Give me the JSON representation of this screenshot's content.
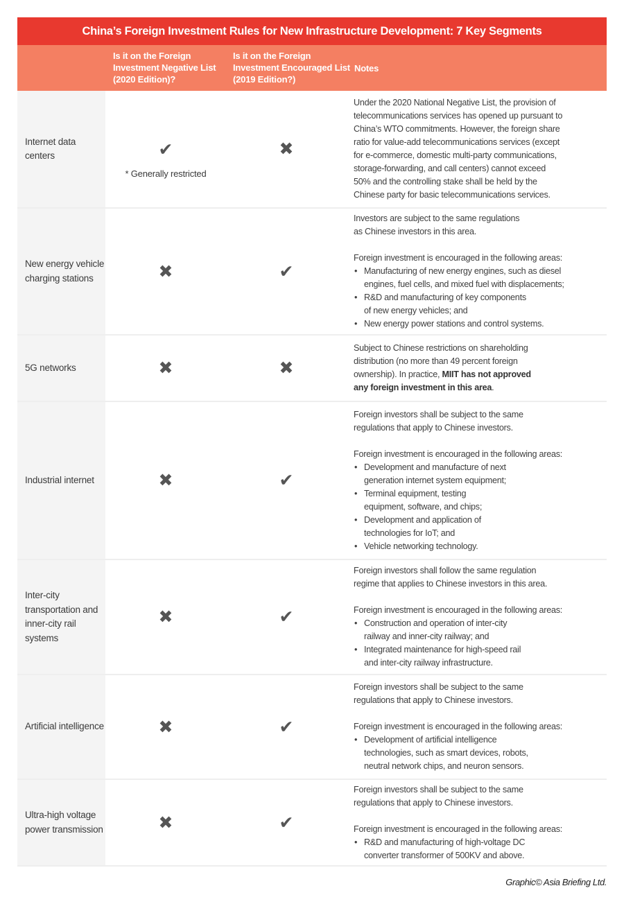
{
  "title": "China’s Foreign Investment Rules for New Infrastructure Development: 7 Key Segments",
  "headers": {
    "negative_list": "Is it on the Foreign Investment Negative List (2020 Edition)?",
    "encouraged_list": "Is it on the Foreign Investment Encouraged List (2019 Edition?)",
    "notes": "Notes"
  },
  "icons": {
    "yes": "checkmark-icon",
    "no": "cross-icon",
    "yes_glyph": "✔",
    "no_glyph": "✖"
  },
  "colors": {
    "title_bar": "#e8392f",
    "header_bar": "#f47f62",
    "mark": "#555555"
  },
  "rows": [
    {
      "segment": "Internet data centers",
      "negative": "yes",
      "negative_note": "* Generally restricted",
      "encouraged": "no",
      "notes": [
        {
          "type": "p",
          "lines": [
            "Under the 2020 National Negative List, the provision of",
            "telecommunications services has opened up pursuant to",
            "China’s WTO commitments. However, the foreign share",
            "ratio for value-add telecommunications services (except",
            "for e-commerce, domestic multi-party communications,",
            "storage-forwarding, and call centers) cannot exceed",
            "50% and the controlling stake shall be held by the",
            "Chinese party for basic telecommunications services."
          ]
        }
      ]
    },
    {
      "segment": "New energy vehicle charging stations",
      "negative": "no",
      "encouraged": "yes",
      "notes": [
        {
          "type": "p",
          "lines": [
            "Investors are subject to the same regulations",
            "as Chinese investors in this area."
          ]
        },
        {
          "type": "gap"
        },
        {
          "type": "p",
          "lines": [
            "Foreign investment is encouraged in the following areas:"
          ]
        },
        {
          "type": "bullet",
          "lines": [
            "Manufacturing of new energy engines, such as diesel",
            "engines, fuel cells, and mixed fuel with displacements;"
          ]
        },
        {
          "type": "bullet",
          "lines": [
            "R&D and manufacturing of key components",
            "of new energy vehicles; and"
          ]
        },
        {
          "type": "bullet",
          "lines": [
            "New energy power stations and control systems."
          ]
        }
      ]
    },
    {
      "segment": "5G networks",
      "negative": "no",
      "encouraged": "no",
      "notes": [
        {
          "type": "p",
          "lines": [
            "Subject to Chinese restrictions on shareholding",
            "distribution (no more than 49 percent foreign",
            [
              {
                "text": "ownership). In practice, ",
                "bold": false
              },
              {
                "text": "MIIT has not approved",
                "bold": true
              }
            ],
            [
              {
                "text": "any foreign investment in this area",
                "bold": true
              },
              {
                "text": ".",
                "bold": false
              }
            ]
          ]
        }
      ]
    },
    {
      "segment": "Industrial internet",
      "negative": "no",
      "encouraged": "yes",
      "notes": [
        {
          "type": "p",
          "lines": [
            "Foreign investors shall be subject to the same",
            "regulations that apply to Chinese investors."
          ]
        },
        {
          "type": "gap"
        },
        {
          "type": "p",
          "lines": [
            "Foreign investment is encouraged in the following areas:"
          ]
        },
        {
          "type": "bullet",
          "lines": [
            "Development and manufacture of next",
            "generation internet system equipment;"
          ]
        },
        {
          "type": "bullet",
          "lines": [
            "Terminal equipment, testing",
            "equipment, software, and chips;"
          ]
        },
        {
          "type": "bullet",
          "lines": [
            "Development and application of",
            "technologies for IoT; and"
          ]
        },
        {
          "type": "bullet",
          "lines": [
            "Vehicle networking technology."
          ]
        }
      ]
    },
    {
      "segment": "Inter-city transportation and inner-city rail systems",
      "negative": "no",
      "encouraged": "yes",
      "notes": [
        {
          "type": "p",
          "lines": [
            "Foreign investors shall follow the same regulation",
            "regime that applies to Chinese investors in this area."
          ]
        },
        {
          "type": "gap"
        },
        {
          "type": "p",
          "lines": [
            "Foreign investment is encouraged in the following areas:"
          ]
        },
        {
          "type": "bullet",
          "lines": [
            "Construction and operation of inter-city",
            "railway and inner-city railway; and"
          ]
        },
        {
          "type": "bullet",
          "lines": [
            "Integrated maintenance for high-speed rail",
            "and inter-city railway infrastructure."
          ]
        }
      ]
    },
    {
      "segment": "Artificial intelligence",
      "negative": "no",
      "encouraged": "yes",
      "notes": [
        {
          "type": "p",
          "lines": [
            "Foreign investors shall be subject to the same",
            "regulations that apply to Chinese investors."
          ]
        },
        {
          "type": "gap"
        },
        {
          "type": "p",
          "lines": [
            "Foreign investment is encouraged in the following areas:"
          ]
        },
        {
          "type": "bullet",
          "lines": [
            "Development of artificial intelligence",
            "technologies, such as smart devices, robots,",
            "neutral network chips, and neuron sensors."
          ]
        }
      ]
    },
    {
      "segment": "Ultra-high voltage power transmission",
      "negative": "no",
      "encouraged": "yes",
      "notes": [
        {
          "type": "p",
          "lines": [
            "Foreign investors shall be subject to the same",
            "regulations that apply to Chinese investors."
          ]
        },
        {
          "type": "gap"
        },
        {
          "type": "p",
          "lines": [
            "Foreign investment is encouraged in the following areas:"
          ]
        },
        {
          "type": "bullet",
          "lines": [
            "R&D and manufacturing of high-voltage DC",
            "converter transformer of 500KV and above."
          ]
        }
      ]
    }
  ],
  "bullet_glyph": "•",
  "credit": "Graphic© Asia Briefing Ltd."
}
